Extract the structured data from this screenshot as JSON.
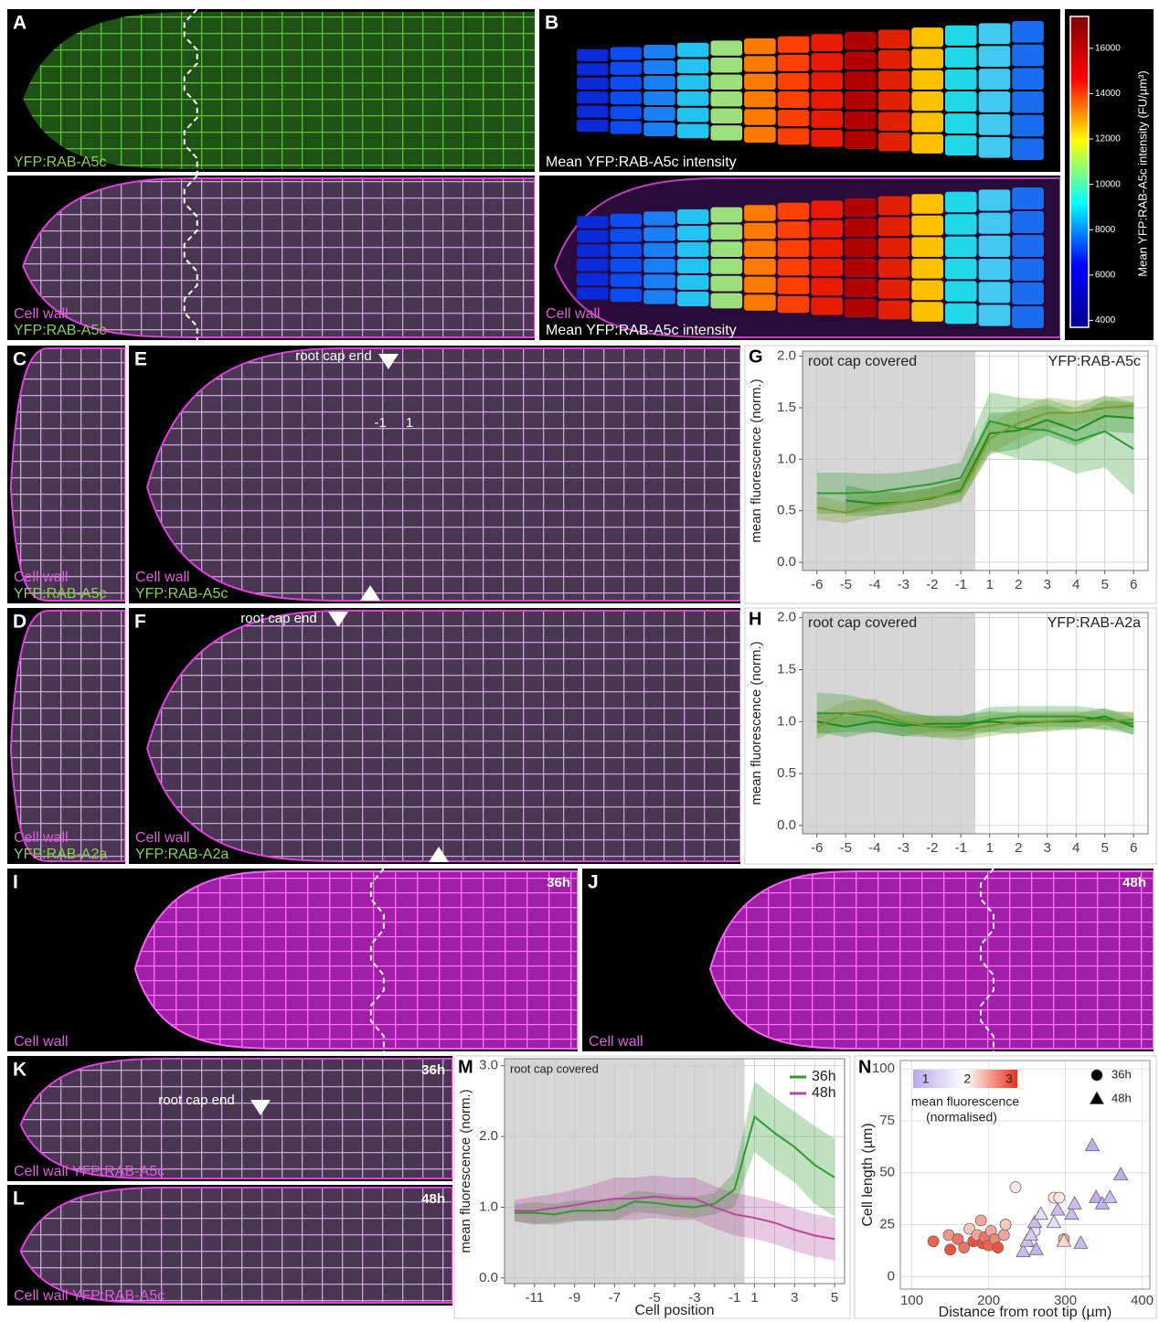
{
  "panels": [
    {
      "letter": "A",
      "labels": [
        {
          "text": "YFP:RAB-A5c",
          "color": "#8fd14f"
        }
      ]
    },
    {
      "labels": [
        {
          "text": "Cell wall",
          "color": "#e05ce0"
        },
        {
          "text": "YFP:RAB-A5c",
          "color": "#8fd14f"
        }
      ]
    },
    {
      "letter": "B",
      "labels": [
        {
          "text": "Mean YFP:RAB-A5c intensity",
          "color": "#ffffff"
        }
      ]
    },
    {
      "labels": [
        {
          "text": "Cell wall",
          "color": "#e05ce0"
        },
        {
          "text": "Mean YFP:RAB-A5c intensity",
          "color": "#ffffff"
        }
      ]
    },
    {
      "letter": "C",
      "labels": [
        {
          "text": "Cell wall",
          "color": "#e05ce0"
        },
        {
          "text": "YFP:RAB-A5c",
          "color": "#8fd14f"
        }
      ]
    },
    {
      "letter": "E",
      "annotations": [
        "root cap end",
        "-1",
        "1"
      ],
      "labels": [
        {
          "text": "Cell wall",
          "color": "#e05ce0"
        },
        {
          "text": "YFP:RAB-A5c",
          "color": "#8fd14f"
        }
      ]
    },
    {
      "letter": "D",
      "labels": [
        {
          "text": "Cell wall",
          "color": "#e05ce0"
        },
        {
          "text": "YFP:RAB-A2a",
          "color": "#8fd14f"
        }
      ]
    },
    {
      "letter": "F",
      "annotations": [
        "root cap end"
      ],
      "labels": [
        {
          "text": "Cell wall",
          "color": "#e05ce0"
        },
        {
          "text": "YFP:RAB-A2a",
          "color": "#8fd14f"
        }
      ]
    },
    {
      "letter": "I",
      "corner": "36h",
      "labels": [
        {
          "text": "Cell wall",
          "color": "#e05ce0"
        }
      ]
    },
    {
      "letter": "J",
      "corner": "48h",
      "labels": [
        {
          "text": "Cell wall",
          "color": "#e05ce0"
        }
      ]
    },
    {
      "letter": "K",
      "corner": "36h",
      "annotations": [
        "root cap end"
      ],
      "labels": [
        {
          "text": "Cell wall  YFP:RAB-A5c",
          "color": "#e05ce0"
        }
      ]
    },
    {
      "letter": "L",
      "corner": "48h",
      "labels": [
        {
          "text": "Cell wall  YFP:RAB-A5c",
          "color": "#e05ce0"
        }
      ]
    }
  ],
  "colorbar": {
    "title": "Mean YFP:RAB-A5c intensity (FU/µm³)",
    "lim": [
      3700,
      17400
    ],
    "ticks": [
      4000,
      6000,
      8000,
      10000,
      12000,
      14000,
      16000
    ],
    "colors": [
      "#00008f",
      "#0000ff",
      "#00ffff",
      "#ffff00",
      "#ff0000",
      "#800000"
    ]
  },
  "chart_data": [
    {
      "type": "line",
      "label": "G",
      "annotations": [
        "root cap covered",
        "YFP:RAB-A5c"
      ],
      "y_label": "mean fluorescence (norm.)",
      "categories": [
        "-6",
        "-5",
        "-4",
        "-3",
        "-2",
        "-1",
        "1",
        "2",
        "3",
        "4",
        "5",
        "6"
      ],
      "ylim": [
        -0.08,
        2.05
      ],
      "yticks": [
        {
          "value": 0,
          "label": "0.0"
        },
        {
          "value": 0.5,
          "label": "0.5"
        },
        {
          "value": 1,
          "label": "1.0"
        },
        {
          "value": 1.5,
          "label": "1.5"
        },
        {
          "value": 2,
          "label": "2.0"
        }
      ],
      "grid": true,
      "series": [
        {
          "color": "#2e9a2e",
          "values": [
            0.67,
            0.67,
            0.68,
            0.72,
            0.76,
            0.82,
            1.37,
            1.3,
            1.28,
            1.18,
            1.27,
            1.1
          ],
          "error": [
            0.2,
            0.2,
            0.18,
            0.15,
            0.15,
            0.15,
            0.28,
            0.3,
            0.3,
            0.32,
            0.35,
            0.45
          ]
        },
        {
          "color": "#1f8a1f",
          "values": [
            null,
            0.6,
            0.57,
            0.58,
            0.62,
            0.7,
            1.25,
            1.28,
            1.38,
            1.28,
            1.42,
            1.4
          ],
          "error": [
            null,
            0.15,
            0.12,
            0.1,
            0.1,
            0.1,
            0.2,
            0.18,
            0.15,
            0.15,
            0.15,
            0.15
          ]
        },
        {
          "color": "#7a9a2a",
          "values": [
            0.53,
            0.48,
            0.55,
            0.58,
            0.63,
            0.68,
            1.2,
            1.35,
            1.45,
            1.45,
            1.5,
            1.52
          ],
          "error": [
            0.12,
            0.1,
            0.1,
            0.1,
            0.1,
            0.1,
            0.15,
            0.15,
            0.15,
            0.12,
            0.1,
            0.1
          ]
        }
      ]
    },
    {
      "type": "line",
      "label": "H",
      "annotations": [
        "root cap covered",
        "YFP:RAB-A2a"
      ],
      "y_label": "mean fluorescence (norm.)",
      "categories": [
        "-6",
        "-5",
        "-4",
        "-3",
        "-2",
        "-1",
        "1",
        "2",
        "3",
        "4",
        "5",
        "6"
      ],
      "ylim": [
        -0.08,
        2.05
      ],
      "yticks": [
        {
          "value": 0,
          "label": "0.0"
        },
        {
          "value": 0.5,
          "label": "0.5"
        },
        {
          "value": 1,
          "label": "1.0"
        },
        {
          "value": 1.5,
          "label": "1.5"
        },
        {
          "value": 2,
          "label": "2.0"
        }
      ],
      "grid": true,
      "series": [
        {
          "color": "#2e9a2e",
          "values": [
            1.08,
            1.08,
            1.05,
            0.98,
            0.95,
            0.95,
            1.02,
            1.05,
            1.05,
            1.05,
            1.02,
            0.98
          ],
          "error": [
            0.2,
            0.18,
            0.15,
            0.12,
            0.1,
            0.1,
            0.12,
            0.1,
            0.1,
            0.1,
            0.1,
            0.1
          ]
        },
        {
          "color": "#1f8a1f",
          "values": [
            1.0,
            0.95,
            1.0,
            0.96,
            0.98,
            0.98,
            1.0,
            0.98,
            1.0,
            1.0,
            1.05,
            0.95
          ],
          "error": [
            0.1,
            0.1,
            0.1,
            0.1,
            0.08,
            0.08,
            0.1,
            0.1,
            0.08,
            0.08,
            0.08,
            0.08
          ]
        },
        {
          "color": "#7a9a2a",
          "values": [
            0.95,
            1.08,
            1.1,
            1.0,
            0.95,
            0.92,
            0.96,
            1.0,
            1.0,
            1.02,
            1.0,
            1.02
          ],
          "error": [
            0.12,
            0.12,
            0.12,
            0.1,
            0.1,
            0.1,
            0.1,
            0.1,
            0.1,
            0.08,
            0.08,
            0.08
          ]
        }
      ]
    },
    {
      "type": "line",
      "label": "M",
      "annotations": [
        "root cap covered"
      ],
      "y_label": "mean fluorescence (norm.)",
      "x_label": "Cell position",
      "categories": [
        null,
        "-11",
        null,
        "-9",
        null,
        "-7",
        null,
        "-5",
        null,
        "-3",
        null,
        "-1",
        "1",
        null,
        "3",
        null,
        "5"
      ],
      "ylim": [
        -0.08,
        3.1
      ],
      "yticks": [
        {
          "value": 0,
          "label": "0.0"
        },
        {
          "value": 1,
          "label": "1.0"
        },
        {
          "value": 2,
          "label": "2.0"
        },
        {
          "value": 3,
          "label": "3.0"
        }
      ],
      "grid": true,
      "series": [
        {
          "name": "36h",
          "color": "#2e9a2e",
          "values": [
            0.92,
            0.92,
            0.9,
            0.95,
            0.95,
            0.96,
            1.08,
            1.06,
            1.02,
            1.0,
            1.05,
            1.25,
            2.28,
            2.05,
            1.85,
            1.6,
            1.42
          ],
          "error": [
            0.12,
            0.15,
            0.15,
            0.15,
            0.15,
            0.15,
            0.15,
            0.15,
            0.15,
            0.15,
            0.15,
            0.25,
            0.5,
            0.5,
            0.5,
            0.55,
            0.55
          ]
        },
        {
          "name": "48h",
          "color": "#b5489b",
          "values": [
            0.95,
            0.95,
            0.99,
            1.03,
            1.08,
            1.12,
            1.12,
            1.15,
            1.12,
            1.12,
            1.0,
            0.9,
            0.85,
            0.78,
            0.68,
            0.6,
            0.55
          ],
          "error": [
            0.15,
            0.2,
            0.2,
            0.22,
            0.25,
            0.3,
            0.3,
            0.3,
            0.3,
            0.3,
            0.3,
            0.3,
            0.3,
            0.3,
            0.3,
            0.3,
            0.3
          ]
        }
      ]
    },
    {
      "type": "scatter",
      "label": "N",
      "x_label": "Distance from root tip (µm)",
      "y_label": "Cell length (µm)",
      "xlim": [
        85,
        410
      ],
      "xticks": [
        100,
        200,
        300,
        400
      ],
      "ylim": [
        -6,
        104
      ],
      "yticks": [
        0,
        25,
        50,
        75,
        100
      ],
      "grid": true,
      "color_scale": {
        "title": [
          "mean fluorescence",
          "(normalised)"
        ],
        "lim": [
          0.7,
          3.2
        ],
        "ticks": [
          1,
          2,
          3
        ],
        "colors": [
          "#b9a6ee",
          "#ffffff",
          "#e8331a"
        ]
      },
      "series": [
        {
          "name": "36h",
          "shape": "circle",
          "x": [
            128,
            148,
            150,
            160,
            168,
            175,
            180,
            185,
            190,
            192,
            195,
            200,
            203,
            208,
            212,
            220,
            222,
            235,
            255,
            260,
            285,
            292,
            298
          ],
          "y": [
            17,
            20,
            13,
            18,
            14,
            23,
            17,
            20,
            27,
            16,
            19,
            15,
            22,
            18,
            14,
            20,
            25,
            43,
            17,
            22,
            38,
            38,
            18
          ],
          "fluorescence": [
            2.9,
            2.6,
            3,
            2.8,
            2.8,
            2.3,
            3,
            2.5,
            2.5,
            3,
            2.8,
            2.9,
            2.5,
            2.7,
            3,
            2.5,
            2.3,
            2.1,
            1.8,
            1.5,
            2.1,
            2.1,
            2.5
          ]
        },
        {
          "name": "48h",
          "shape": "triangle",
          "x": [
            245,
            250,
            255,
            260,
            262,
            268,
            285,
            290,
            298,
            308,
            312,
            320,
            335,
            340,
            348,
            358,
            372
          ],
          "y": [
            12,
            17,
            20,
            26,
            13,
            30,
            26,
            32,
            17,
            30,
            35,
            16,
            63,
            38,
            35,
            38,
            49
          ],
          "fluorescence": [
            1,
            1,
            1.2,
            1,
            0.9,
            1.5,
            1.5,
            1,
            2.2,
            1,
            1,
            1,
            0.8,
            0.8,
            0.9,
            1,
            0.8
          ]
        }
      ]
    }
  ]
}
